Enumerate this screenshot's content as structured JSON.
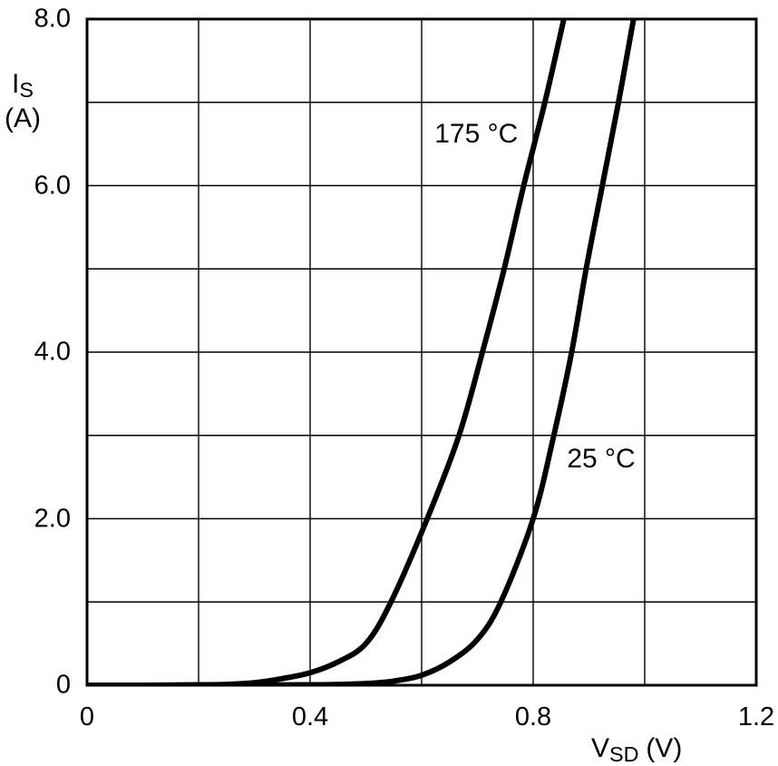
{
  "figure": {
    "background": "#ffffff",
    "line_color": "#000000",
    "grid_color": "#000000",
    "text_color": "#000000"
  },
  "chart_data": {
    "type": "line",
    "title": "",
    "xlabel": {
      "main": "V",
      "sub": "SD",
      "unit": "(V)"
    },
    "ylabel": {
      "main": "I",
      "sub": "S",
      "unit": "(A)"
    },
    "xlim": [
      0,
      1.2
    ],
    "ylim": [
      0,
      8
    ],
    "x_grid_step": 0.2,
    "y_grid_step": 1.0,
    "grid": "on",
    "legend_position": "inline-annotations",
    "x_ticks": [
      {
        "value": 0,
        "label": "0"
      },
      {
        "value": 0.4,
        "label": "0.4"
      },
      {
        "value": 0.8,
        "label": "0.8"
      },
      {
        "value": 1.2,
        "label": "1.2"
      }
    ],
    "y_ticks": [
      {
        "value": 8,
        "label": "8.0"
      },
      {
        "value": 6,
        "label": "6.0"
      },
      {
        "value": 4,
        "label": "4.0"
      },
      {
        "value": 2,
        "label": "2.0"
      },
      {
        "value": 0,
        "label": "0"
      }
    ],
    "series": [
      {
        "name": "175C",
        "label": "175 °C",
        "color": "#000000",
        "label_anchor": {
          "v": 0.698,
          "a": 6.62
        },
        "points": [
          [
            0.0,
            0
          ],
          [
            0.1,
            0
          ],
          [
            0.2,
            0.005
          ],
          [
            0.25,
            0.01
          ],
          [
            0.3,
            0.03
          ],
          [
            0.35,
            0.08
          ],
          [
            0.4,
            0.15
          ],
          [
            0.45,
            0.28
          ],
          [
            0.5,
            0.5
          ],
          [
            0.545,
            1.0
          ],
          [
            0.61,
            2.0
          ],
          [
            0.667,
            3.0
          ],
          [
            0.709,
            4.0
          ],
          [
            0.748,
            5.0
          ],
          [
            0.783,
            6.0
          ],
          [
            0.821,
            7.0
          ],
          [
            0.855,
            8.0
          ]
        ]
      },
      {
        "name": "25C",
        "label": "25 °C",
        "color": "#000000",
        "label_anchor": {
          "v": 0.922,
          "a": 2.71
        },
        "points": [
          [
            0.0,
            0
          ],
          [
            0.2,
            0
          ],
          [
            0.4,
            0.005
          ],
          [
            0.45,
            0.01
          ],
          [
            0.5,
            0.02
          ],
          [
            0.55,
            0.05
          ],
          [
            0.6,
            0.12
          ],
          [
            0.65,
            0.28
          ],
          [
            0.7,
            0.55
          ],
          [
            0.742,
            1.0
          ],
          [
            0.8,
            2.0
          ],
          [
            0.837,
            3.0
          ],
          [
            0.869,
            4.0
          ],
          [
            0.895,
            5.0
          ],
          [
            0.924,
            6.0
          ],
          [
            0.953,
            7.0
          ],
          [
            0.98,
            8.0
          ]
        ]
      }
    ]
  }
}
